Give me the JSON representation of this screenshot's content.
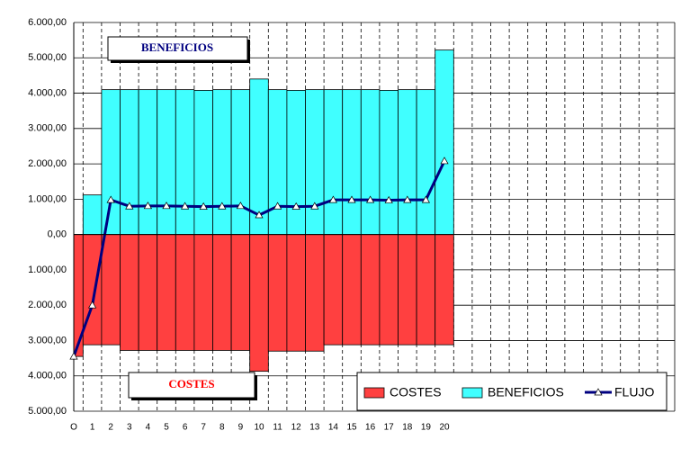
{
  "chart_data": {
    "type": "bar",
    "categories": [
      "O",
      "1",
      "2",
      "3",
      "4",
      "5",
      "6",
      "7",
      "8",
      "9",
      "10",
      "11",
      "12",
      "13",
      "14",
      "15",
      "16",
      "17",
      "18",
      "19",
      "20"
    ],
    "series": [
      {
        "name": "COSTES",
        "color": "#ff4040",
        "kind": "bar",
        "values": [
          -3450,
          -3120,
          -3120,
          -3280,
          -3280,
          -3280,
          -3280,
          -3280,
          -3280,
          -3280,
          -3870,
          -3300,
          -3300,
          -3300,
          -3120,
          -3120,
          -3120,
          -3120,
          -3120,
          -3120,
          -3120
        ]
      },
      {
        "name": "BENEFICIOS",
        "color": "#40ffff",
        "kind": "bar",
        "values": [
          0,
          1120,
          4100,
          4100,
          4100,
          4100,
          4100,
          4080,
          4100,
          4100,
          4400,
          4100,
          4080,
          4100,
          4100,
          4100,
          4100,
          4080,
          4100,
          4100,
          5220
        ]
      },
      {
        "name": "FLUJO",
        "color": "#000080",
        "kind": "line",
        "values": [
          -3450,
          -2000,
          980,
          800,
          810,
          810,
          800,
          790,
          800,
          810,
          550,
          800,
          790,
          800,
          980,
          980,
          980,
          970,
          980,
          980,
          2080
        ]
      }
    ],
    "ylim": [
      -5000,
      6000
    ],
    "yticks": [
      {
        "value": 6000,
        "label": "6.000,00"
      },
      {
        "value": 5000,
        "label": "5.000,00"
      },
      {
        "value": 4000,
        "label": "4.000,00"
      },
      {
        "value": 3000,
        "label": "3.000,00"
      },
      {
        "value": 2000,
        "label": "2.000,00"
      },
      {
        "value": 1000,
        "label": "1.000,00"
      },
      {
        "value": 0,
        "label": "0,00"
      },
      {
        "value": -1000,
        "label": "1.000,00"
      },
      {
        "value": -2000,
        "label": "2.000,00"
      },
      {
        "value": -3000,
        "label": "3.000,00"
      },
      {
        "value": -4000,
        "label": "4.000,00"
      },
      {
        "value": -5000,
        "label": "5.000,00"
      }
    ],
    "annotations": [
      "BENEFICIOS",
      "COSTES"
    ],
    "legend": "bottom-right",
    "grid": true
  }
}
